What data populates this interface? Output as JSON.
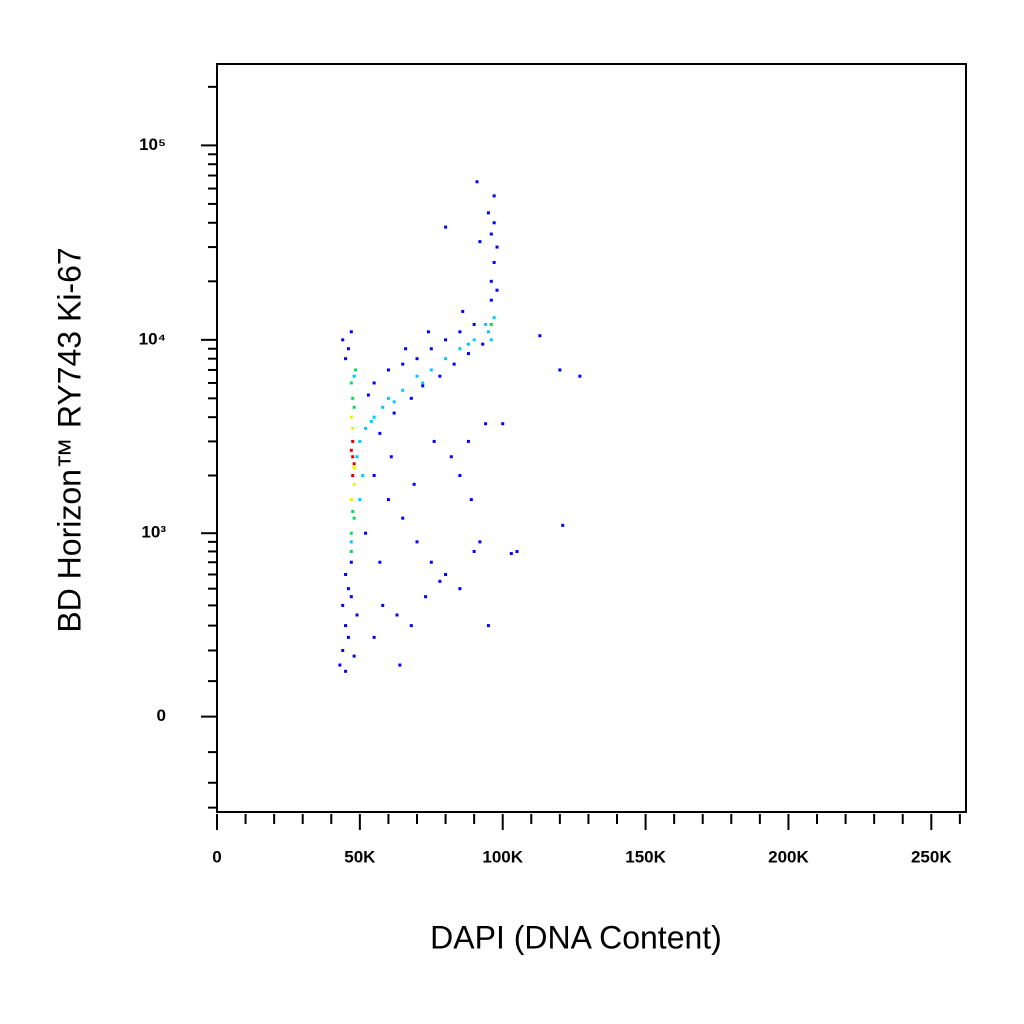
{
  "chart_data": {
    "type": "scatter",
    "xlabel": "DAPI (DNA Content)",
    "ylabel": "BD Horizon™ RY743  Ki-67",
    "yscale": "biexponential",
    "xlim": [
      0,
      262144
    ],
    "ylim": [
      -320,
      262144
    ],
    "xticks": [
      0,
      {
        "value": 50000,
        "label": "50K"
      },
      {
        "value": 100000,
        "label": "100K"
      },
      {
        "value": 150000,
        "label": "150K"
      },
      {
        "value": 200000,
        "label": "200K"
      },
      {
        "value": 250000,
        "label": "250K"
      }
    ],
    "xminorticks": [
      10000,
      20000,
      30000,
      40000,
      60000,
      70000,
      80000,
      90000,
      110000,
      120000,
      130000,
      140000,
      160000,
      170000,
      180000,
      190000,
      210000,
      220000,
      230000,
      240000,
      260000
    ],
    "yticks": [
      0,
      {
        "value": 1000,
        "label": "10³"
      },
      {
        "value": 10000,
        "label": "10⁴"
      },
      {
        "value": 100000,
        "label": "10⁵"
      }
    ],
    "yminorticks": [
      -300,
      -200,
      -100,
      100,
      200,
      300,
      400,
      500,
      600,
      700,
      800,
      900,
      2000,
      3000,
      4000,
      5000,
      6000,
      7000,
      8000,
      9000,
      20000,
      30000,
      40000,
      50000,
      60000,
      70000,
      80000,
      90000,
      200000
    ],
    "series": [
      {
        "color": "#0000ff",
        "x": [
          45000,
          46000,
          44000,
          47000,
          45000,
          46000,
          44000,
          48000,
          43000,
          45000,
          47000,
          49000,
          46000,
          47000,
          45000,
          44000,
          55000,
          60000,
          65000,
          70000,
          75000,
          80000,
          85000,
          90000,
          62000,
          68000,
          72000,
          78000,
          83000,
          88000,
          93000,
          57000,
          53000,
          66000,
          74000,
          86000,
          96000,
          97000,
          98000,
          96000,
          97000,
          95000,
          97000,
          91000,
          80000,
          92000,
          98000,
          96000,
          55000,
          60000,
          65000,
          70000,
          75000,
          80000,
          85000,
          90000,
          92000,
          95000,
          58000,
          63000,
          68000,
          73000,
          78000,
          82000,
          88000,
          94000,
          100000,
          105000,
          103000,
          113000,
          120000,
          127000,
          121000,
          64000,
          55000,
          52000,
          57000,
          61000,
          69000,
          76000,
          85000,
          89000
        ],
        "y": [
          600,
          500,
          400,
          700,
          300,
          250,
          200,
          180,
          150,
          130,
          450,
          350,
          9000,
          11000,
          8000,
          10000,
          6000,
          7000,
          7500,
          8000,
          9000,
          10000,
          11000,
          12000,
          4200,
          5000,
          5800,
          6500,
          7500,
          8500,
          9500,
          3300,
          5200,
          9000,
          11000,
          14000,
          20000,
          25000,
          30000,
          35000,
          40000,
          45000,
          55000,
          65000,
          38000,
          32000,
          18000,
          16000,
          2000,
          1500,
          1200,
          900,
          700,
          600,
          500,
          800,
          900,
          300,
          400,
          350,
          300,
          450,
          550,
          2500,
          3000,
          3700,
          3700,
          800,
          780,
          10500,
          7000,
          6500,
          1100,
          150,
          250,
          1000,
          700,
          2500,
          1800,
          3000,
          2000,
          1500
        ]
      },
      {
        "color": "#00c8ff",
        "x": [
          52000,
          55000,
          50000,
          58000,
          60000,
          65000,
          70000,
          75000,
          80000,
          85000,
          90000,
          95000,
          97000,
          96000,
          49000,
          50000,
          51000,
          47000,
          48000,
          54000,
          62000,
          72000,
          88000,
          94000
        ],
        "y": [
          3500,
          4000,
          3000,
          4500,
          5000,
          5500,
          6500,
          7000,
          8000,
          9000,
          10000,
          11000,
          13000,
          10000,
          2500,
          1500,
          2000,
          900,
          6500,
          3800,
          4800,
          6000,
          9500,
          12000
        ]
      },
      {
        "color": "#00e050",
        "x": [
          47000,
          48000,
          47500,
          47000,
          48500,
          47500,
          48000,
          47000,
          96000
        ],
        "y": [
          1000,
          1200,
          5000,
          6000,
          7000,
          1300,
          4500,
          800,
          12000
        ]
      },
      {
        "color": "#f0f000",
        "x": [
          47000,
          48000,
          47500,
          47000,
          48000
        ],
        "y": [
          1500,
          1800,
          3500,
          4000,
          2200
        ]
      },
      {
        "color": "#e00000",
        "x": [
          47500,
          47500,
          47500,
          48000,
          47000
        ],
        "y": [
          2000,
          2500,
          3000,
          2300,
          2700
        ]
      }
    ]
  }
}
